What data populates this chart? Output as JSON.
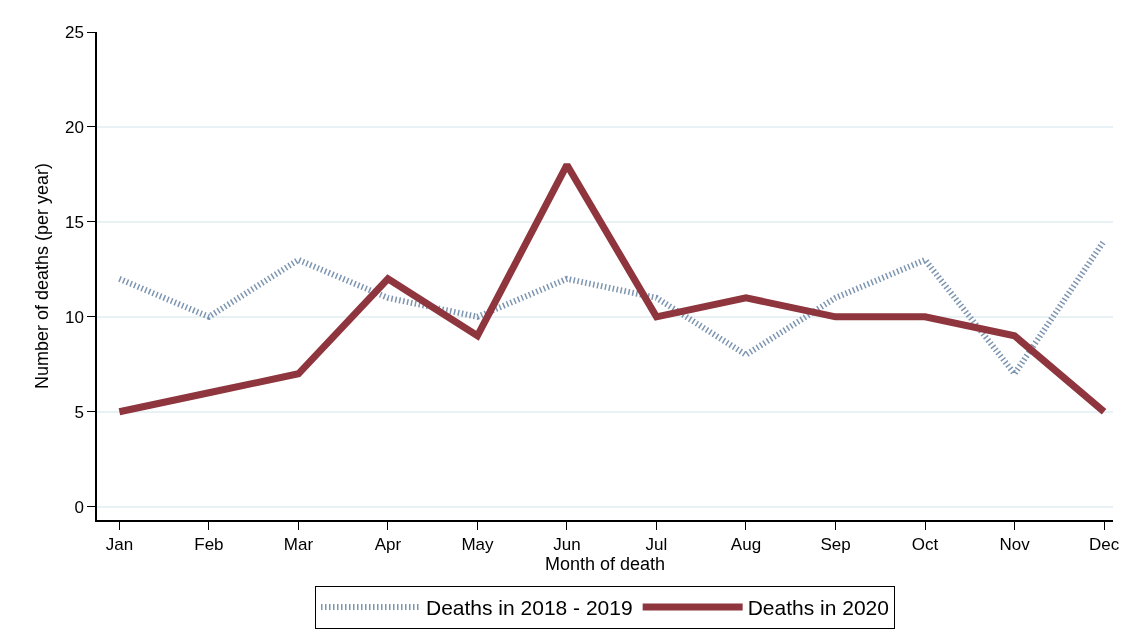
{
  "chart_data": {
    "type": "line",
    "xlabel": "Month of death",
    "ylabel": "Number of deaths (per year)",
    "categories": [
      "Jan",
      "Feb",
      "Mar",
      "Apr",
      "May",
      "Jun",
      "Jul",
      "Aug",
      "Sep",
      "Oct",
      "Nov",
      "Dec"
    ],
    "ylim": [
      -0.7,
      25
    ],
    "yticks": [
      0,
      5,
      10,
      15,
      20,
      25
    ],
    "grid": "y",
    "legend": "bottom",
    "series": [
      {
        "name": "Deaths in 2018 - 2019",
        "color": "#7d95b0",
        "line_style": "dotted",
        "values": [
          12,
          10,
          13,
          11,
          10,
          12,
          11,
          8,
          11,
          13,
          7,
          14
        ]
      },
      {
        "name": "Deaths in 2020",
        "color": "#8e353d",
        "line_style": "solid",
        "values": [
          5,
          6,
          7,
          12,
          9,
          18,
          10,
          11,
          10,
          10,
          9,
          5
        ]
      }
    ]
  }
}
